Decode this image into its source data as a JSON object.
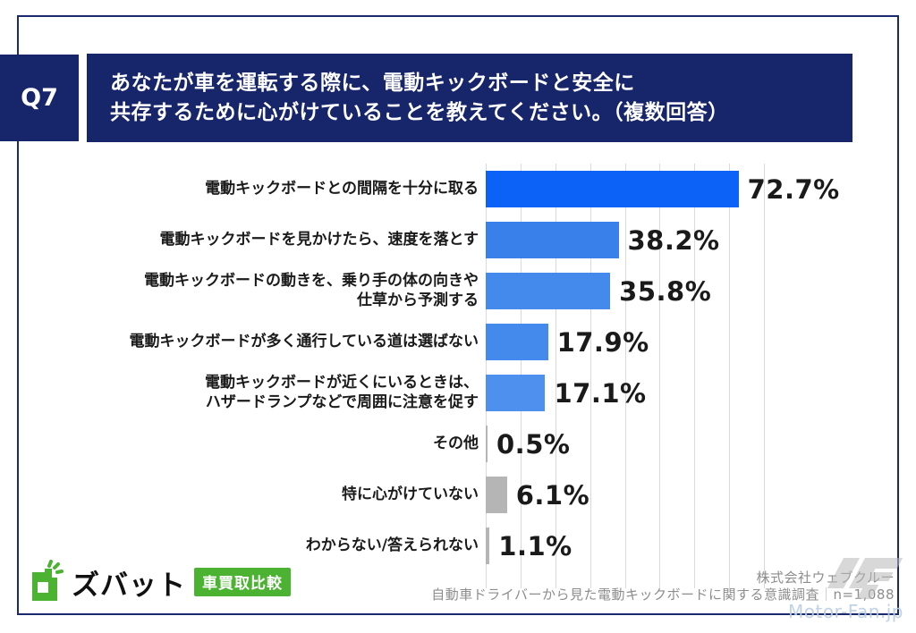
{
  "question": {
    "badge": "Q7",
    "title_line1": "あなたが車を運転する際に、電動キックボードと安全に",
    "title_line2": "共存するために心がけていることを教えてください。（複数回答）"
  },
  "chart_data": {
    "type": "bar",
    "orientation": "horizontal",
    "title": "",
    "xlabel": "",
    "ylabel": "",
    "xlim": [
      0,
      80
    ],
    "gridline_step": 10,
    "grid": true,
    "legend": "none",
    "categories": [
      "電動キックボードとの間隔を十分に取る",
      "電動キックボードを見かけたら、速度を落とす",
      "電動キックボードの動きを、乗り手の体の向きや仕草から予測する",
      "電動キックボードが多く通行している道は選ばない",
      "電動キックボードが近くにいるときは、ハザードランプなどで周囲に注意を促す",
      "その他",
      "特に心がけていない",
      "わからない/答えられない"
    ],
    "values": [
      72.7,
      38.2,
      35.8,
      17.9,
      17.1,
      0.5,
      6.1,
      1.1
    ],
    "rows": [
      {
        "label_lines": [
          "電動キックボードとの間隔を十分に取る"
        ],
        "value": 72.7,
        "value_label": "72.7%",
        "color": "#0c62f7"
      },
      {
        "label_lines": [
          "電動キックボードを見かけたら、速度を落とす"
        ],
        "value": 38.2,
        "value_label": "38.2%",
        "color": "#3a80ea"
      },
      {
        "label_lines": [
          "電動キックボードの動きを、乗り手の体の向きや",
          "仕草から予測する"
        ],
        "value": 35.8,
        "value_label": "35.8%",
        "color": "#4489ec"
      },
      {
        "label_lines": [
          "電動キックボードが多く通行している道は選ばない"
        ],
        "value": 17.9,
        "value_label": "17.9%",
        "color": "#4489ec"
      },
      {
        "label_lines": [
          "電動キックボードが近くにいるときは、",
          "ハザードランプなどで周囲に注意を促す"
        ],
        "value": 17.1,
        "value_label": "17.1%",
        "color": "#4e90ee"
      },
      {
        "label_lines": [
          "その他"
        ],
        "value": 0.5,
        "value_label": "0.5%",
        "color": "#b5b5b5"
      },
      {
        "label_lines": [
          "特に心がけていない"
        ],
        "value": 6.1,
        "value_label": "6.1%",
        "color": "#b5b5b5"
      },
      {
        "label_lines": [
          "わからない/答えられない"
        ],
        "value": 1.1,
        "value_label": "1.1%",
        "color": "#b5b5b5"
      }
    ]
  },
  "footer": {
    "company": "株式会社ウェブクルー",
    "survey": "自動車ドライバーから見た電動キックボードに関する意識調査",
    "separator": "｜",
    "sample": "n=1,088"
  },
  "logo": {
    "brand": "ズバット",
    "badge": "車買取比較",
    "green": "#4cb232"
  },
  "watermark": {
    "text": "Motor-Fan.jp"
  },
  "colors": {
    "navy": "#17256b",
    "frame": "#1b2a6d",
    "gridline": "#d9d9d9",
    "value_text": "#1a1a1a",
    "credit_text": "#8d8d8d",
    "gray_bar": "#b5b5b5"
  }
}
